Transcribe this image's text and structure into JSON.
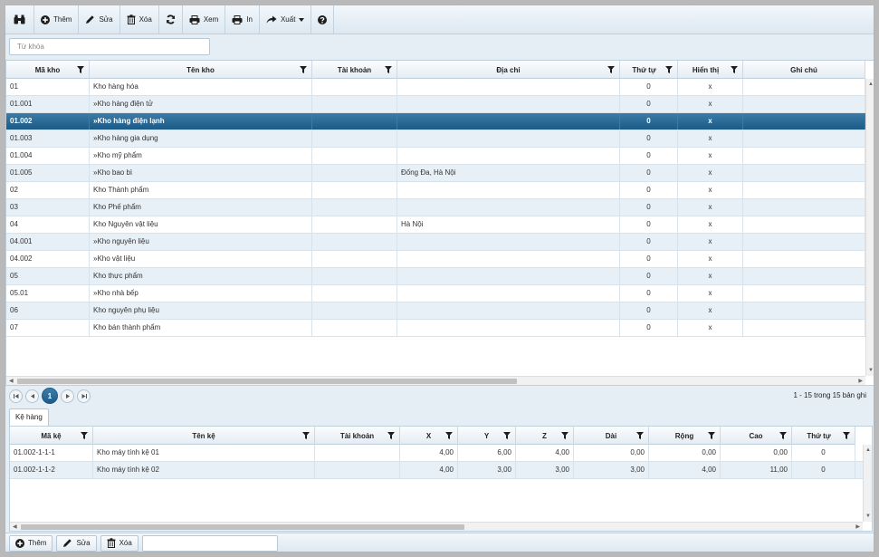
{
  "toolbar": {
    "add_label": "Thêm",
    "edit_label": "Sửa",
    "delete_label": "Xóa",
    "view_label": "Xem",
    "print_label": "In",
    "export_label": "Xuất"
  },
  "search": {
    "placeholder": "Từ khóa",
    "value": ""
  },
  "warehouse_grid": {
    "columns": [
      "Mã kho",
      "Tên kho",
      "Tài khoản",
      "Địa chỉ",
      "Thứ tự",
      "Hiển thị",
      "Ghi chú"
    ],
    "selected_index": 2,
    "rows": [
      {
        "code": "01",
        "name": "Kho hàng hóa",
        "account": "",
        "address": "",
        "order": "0",
        "visible": "x",
        "note": ""
      },
      {
        "code": "01.001",
        "name": "»Kho hàng điện tử",
        "account": "",
        "address": "",
        "order": "0",
        "visible": "x",
        "note": ""
      },
      {
        "code": "01.002",
        "name": "»Kho hàng điện lạnh",
        "account": "",
        "address": "",
        "order": "0",
        "visible": "x",
        "note": ""
      },
      {
        "code": "01.003",
        "name": "»Kho hàng gia dụng",
        "account": "",
        "address": "",
        "order": "0",
        "visible": "x",
        "note": ""
      },
      {
        "code": "01.004",
        "name": "»Kho mỹ phẩm",
        "account": "",
        "address": "",
        "order": "0",
        "visible": "x",
        "note": ""
      },
      {
        "code": "01.005",
        "name": "»Kho bao bì",
        "account": "",
        "address": "Đống Đa, Hà Nội",
        "order": "0",
        "visible": "x",
        "note": ""
      },
      {
        "code": "02",
        "name": "Kho Thành phẩm",
        "account": "",
        "address": "",
        "order": "0",
        "visible": "x",
        "note": ""
      },
      {
        "code": "03",
        "name": "Kho Phế phẩm",
        "account": "",
        "address": "",
        "order": "0",
        "visible": "x",
        "note": ""
      },
      {
        "code": "04",
        "name": "Kho Nguyên vật liệu",
        "account": "",
        "address": "Hà Nội",
        "order": "0",
        "visible": "x",
        "note": ""
      },
      {
        "code": "04.001",
        "name": "»Kho nguyên liệu",
        "account": "",
        "address": "",
        "order": "0",
        "visible": "x",
        "note": ""
      },
      {
        "code": "04.002",
        "name": "»Kho vật liệu",
        "account": "",
        "address": "",
        "order": "0",
        "visible": "x",
        "note": ""
      },
      {
        "code": "05",
        "name": "Kho thực phẩm",
        "account": "",
        "address": "",
        "order": "0",
        "visible": "x",
        "note": ""
      },
      {
        "code": "05.01",
        "name": "»Kho nhà bếp",
        "account": "",
        "address": "",
        "order": "0",
        "visible": "x",
        "note": ""
      },
      {
        "code": "06",
        "name": "Kho nguyên phụ liệu",
        "account": "",
        "address": "",
        "order": "0",
        "visible": "x",
        "note": ""
      },
      {
        "code": "07",
        "name": "Kho bán thành phẩm",
        "account": "",
        "address": "",
        "order": "0",
        "visible": "x",
        "note": ""
      }
    ]
  },
  "pager": {
    "current_page": "1",
    "info": "1 - 15 trong 15 bản ghi"
  },
  "shelf_tab": {
    "label": "Kệ hàng"
  },
  "shelf_grid": {
    "columns": [
      "Mã kệ",
      "Tên kệ",
      "Tài khoản",
      "X",
      "Y",
      "Z",
      "Dài",
      "Rộng",
      "Cao",
      "Thứ tự"
    ],
    "rows": [
      {
        "code": "01.002-1-1-1",
        "name": "Kho máy tính kệ 01",
        "account": "",
        "x": "4,00",
        "y": "6,00",
        "z": "4,00",
        "length": "0,00",
        "width": "0,00",
        "height": "0,00",
        "order": "0"
      },
      {
        "code": "01.002-1-1-2",
        "name": "Kho máy tính kệ 02",
        "account": "",
        "x": "4,00",
        "y": "3,00",
        "z": "3,00",
        "length": "3,00",
        "width": "4,00",
        "height": "11,00",
        "order": "0"
      }
    ]
  },
  "bottom_bar": {
    "add_label": "Thêm",
    "edit_label": "Sửa",
    "delete_label": "Xóa",
    "input_value": ""
  },
  "colors": {
    "selected_row": "#1f5d8a",
    "header_bg": "#e4ecf3",
    "frame_bg": "#e6eef5"
  }
}
